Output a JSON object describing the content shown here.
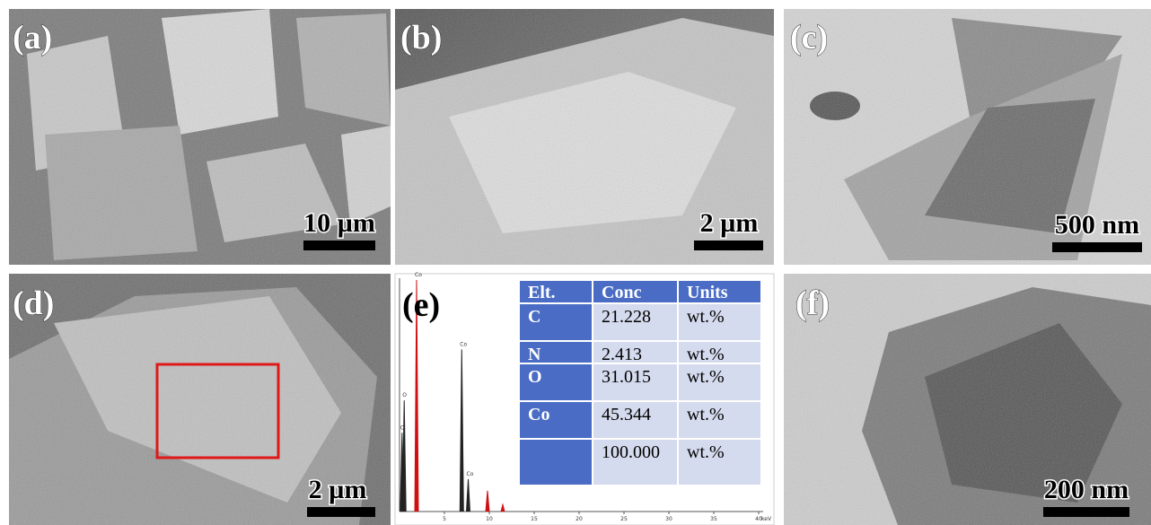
{
  "panels": [
    {
      "label": "(a)",
      "scale_bar": "10 µm"
    },
    {
      "label": "(b)",
      "scale_bar": "2 µm"
    },
    {
      "label": "(c)",
      "scale_bar": "500 nm"
    },
    {
      "label": "(d)",
      "scale_bar": "2 µm"
    },
    {
      "label": "(e)"
    },
    {
      "label": "(f)",
      "scale_bar": "200 nm"
    }
  ],
  "eds_table": {
    "header": [
      "Elt.",
      "Conc",
      "Units"
    ],
    "rows": [
      {
        "elt": "C",
        "conc": "21.228",
        "units": "wt.%"
      },
      {
        "elt": "N",
        "conc": "2.413",
        "units": "wt.%"
      },
      {
        "elt": "O",
        "conc": "31.015",
        "units": "wt.%"
      },
      {
        "elt": "Co",
        "conc": "45.344",
        "units": "wt.%"
      },
      {
        "conc": "100.000",
        "units": "wt.%"
      }
    ]
  },
  "spectrum": {
    "x_unit": "keV",
    "xlim": [
      0,
      40
    ],
    "ylim": [
      0,
      100
    ],
    "xticks": [
      5,
      10,
      15,
      20,
      25,
      30,
      35,
      40
    ],
    "peaks": [
      {
        "label": "C",
        "energy": 0.28,
        "height": 34,
        "color": "#222222"
      },
      {
        "label": "O",
        "energy": 0.52,
        "height": 48,
        "color": "#222222"
      },
      {
        "label": "Co",
        "energy": 1.9,
        "height": 100,
        "color": "#d01010"
      },
      {
        "label": "Co",
        "energy": 6.93,
        "height": 70,
        "color": "#222222"
      },
      {
        "label": "Co",
        "energy": 7.65,
        "height": 14,
        "color": "#222222"
      },
      {
        "energy": 9.8,
        "height": 9,
        "color": "#d01010"
      },
      {
        "energy": 11.5,
        "height": 3,
        "color": "#d01010"
      }
    ]
  }
}
